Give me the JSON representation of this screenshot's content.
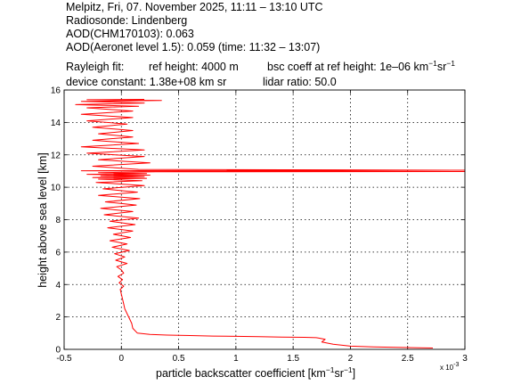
{
  "header": {
    "line1": "Melpitz, Fri, 07. November 2025, 11:11 – 13:10 UTC",
    "line2": "Radiosonde: Lindenberg",
    "line3": "AOD(CHM170103): 0.063",
    "line4": "AOD(Aeronet level 1.5): 0.059   (time: 11:32 – 13:07)",
    "line5_rayleigh": "Rayleigh fit:",
    "line5_refheight": "ref height: 4000 m",
    "line5_bsc_prefix": "bsc coeff at ref height: 1e–06 km",
    "line5_sup1": "−1",
    "line5_sr": "sr",
    "line5_sup2": "−1",
    "line6_constant": "device constant: 1.38e+08 km sr",
    "line6_ratio": "lidar ratio: 50.0"
  },
  "chart_data": {
    "type": "line",
    "xlabel_main": "particle backscatter coefficient [km",
    "xlabel_sup1": "−1",
    "xlabel_sr": "sr",
    "xlabel_sup2": "−1",
    "xlabel_close": "]",
    "ylabel": "height above sea level [km]",
    "x_exponent_label": "x 10",
    "x_exponent_power": "-3",
    "xlim": [
      -0.5,
      3.0
    ],
    "ylim": [
      0,
      16
    ],
    "xticks": [
      -0.5,
      0,
      0.5,
      1,
      1.5,
      2,
      2.5,
      3
    ],
    "xtick_labels": [
      "-0.5",
      "0",
      "0.5",
      "1",
      "1.5",
      "2",
      "2.5",
      "3"
    ],
    "yticks": [
      0,
      2,
      4,
      6,
      8,
      10,
      12,
      14,
      16
    ],
    "ytick_labels": [
      "0",
      "2",
      "4",
      "6",
      "8",
      "10",
      "12",
      "14",
      "16"
    ],
    "grid": true,
    "series_color": "#ff0000",
    "series": [
      {
        "x": [
          2.72,
          2.6,
          2.4,
          2.2,
          2.0,
          1.85,
          1.75,
          1.78,
          1.72,
          1.7,
          1.6,
          1.4,
          1.2,
          1.0,
          0.8,
          0.6,
          0.4,
          0.25,
          0.14,
          0.1,
          0.09,
          0.07,
          0.05,
          0.03,
          0.02,
          0.01,
          0.0,
          -0.01,
          0.02,
          -0.02,
          0.01,
          -0.03,
          0.02,
          0.0,
          -0.04,
          0.05,
          -0.05,
          0.03,
          -0.06,
          0.07,
          -0.08,
          0.05,
          -0.1,
          0.08,
          -0.07,
          0.1,
          -0.12,
          0.12,
          -0.1,
          0.15,
          -0.15,
          0.1,
          -0.18,
          0.13,
          -0.14,
          0.16,
          -0.2,
          0.14,
          -0.16,
          0.2,
          -0.22,
          0.18,
          -0.2,
          0.22,
          -0.25,
          0.2,
          -0.18,
          0.25,
          -0.3,
          0.22,
          -0.2,
          0.3,
          3.0,
          0.1,
          -0.35,
          3.0,
          0.15,
          -0.25,
          0.25,
          -0.2,
          0.2,
          -0.3,
          0.2,
          -0.35,
          0.15,
          -0.25,
          0.1,
          -0.2,
          0.1,
          -0.25,
          0.05,
          -0.3,
          0.1,
          -0.35,
          0.1,
          -0.3,
          0.15,
          -0.4,
          0.2,
          -0.35,
          0.35,
          0.0,
          -0.3,
          0.2
        ],
        "y": [
          0.08,
          0.1,
          0.12,
          0.15,
          0.2,
          0.32,
          0.45,
          0.62,
          0.7,
          0.72,
          0.74,
          0.76,
          0.78,
          0.8,
          0.82,
          0.85,
          0.88,
          0.92,
          1.0,
          1.3,
          1.6,
          1.9,
          2.2,
          2.5,
          2.8,
          3.1,
          3.4,
          3.7,
          3.9,
          4.1,
          4.3,
          4.5,
          4.7,
          4.9,
          5.1,
          5.3,
          5.5,
          5.7,
          5.9,
          6.1,
          6.3,
          6.5,
          6.7,
          6.9,
          7.1,
          7.3,
          7.5,
          7.7,
          7.9,
          8.1,
          8.3,
          8.5,
          8.7,
          8.9,
          9.1,
          9.3,
          9.5,
          9.7,
          9.9,
          10.1,
          10.3,
          10.4,
          10.5,
          10.55,
          10.6,
          10.65,
          10.7,
          10.75,
          10.8,
          10.85,
          10.9,
          10.95,
          10.97,
          11.0,
          11.02,
          11.05,
          11.1,
          11.3,
          11.5,
          11.7,
          11.9,
          12.1,
          12.3,
          12.5,
          12.7,
          12.9,
          13.1,
          13.3,
          13.5,
          13.7,
          13.9,
          14.1,
          14.3,
          14.5,
          14.7,
          14.9,
          15.0,
          15.1,
          15.2,
          15.3,
          15.35,
          15.38,
          15.4,
          15.42
        ]
      }
    ]
  }
}
